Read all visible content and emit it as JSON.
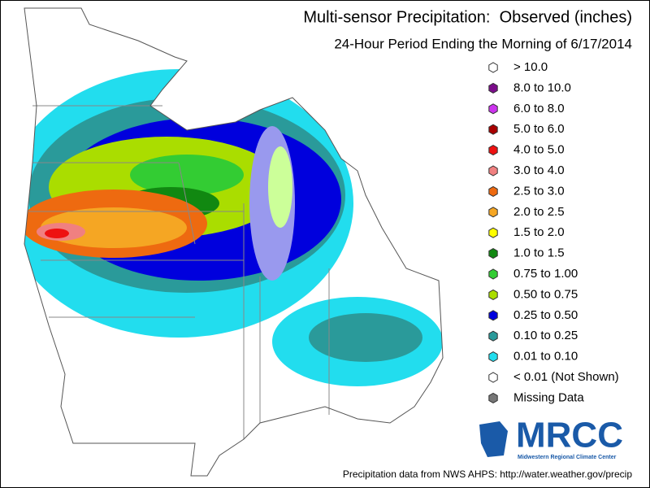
{
  "header": {
    "title": "Multi-sensor Precipitation:  Observed (inches)",
    "subtitle": "24-Hour Period Ending the Morning of 6/17/2014"
  },
  "legend": {
    "items": [
      {
        "label": "> 10.0",
        "color": "#ffffff"
      },
      {
        "label": "8.0 to 10.0",
        "color": "#7b0d8a"
      },
      {
        "label": "6.0 to 8.0",
        "color": "#cc33ee"
      },
      {
        "label": "5.0 to 6.0",
        "color": "#a80000"
      },
      {
        "label": "4.0 to 5.0",
        "color": "#ee1111"
      },
      {
        "label": "3.0 to 4.0",
        "color": "#f08080"
      },
      {
        "label": "2.5 to 3.0",
        "color": "#ee6a10"
      },
      {
        "label": "2.0 to 2.5",
        "color": "#f5a623"
      },
      {
        "label": "1.5 to 2.0",
        "color": "#ffff00"
      },
      {
        "label": "1.0 to 1.5",
        "color": "#118811"
      },
      {
        "label": "0.75 to 1.00",
        "color": "#33cc33"
      },
      {
        "label": "0.50 to 0.75",
        "color": "#aadd00"
      },
      {
        "label": "0.25 to 0.50",
        "color": "#0000dd"
      },
      {
        "label": "0.10 to 0.25",
        "color": "#2a9a9a"
      },
      {
        "label": "0.01 to 0.10",
        "color": "#22ddee"
      },
      {
        "label": "< 0.01 (Not Shown)",
        "color": "#ffffff"
      },
      {
        "label": "Missing Data",
        "color": "#777777"
      }
    ]
  },
  "logo": {
    "name": "MRCC",
    "full_name": "Midwestern Regional Climate Center"
  },
  "footer": "Precipitation data from NWS AHPS: http://water.weather.gov/precip"
}
